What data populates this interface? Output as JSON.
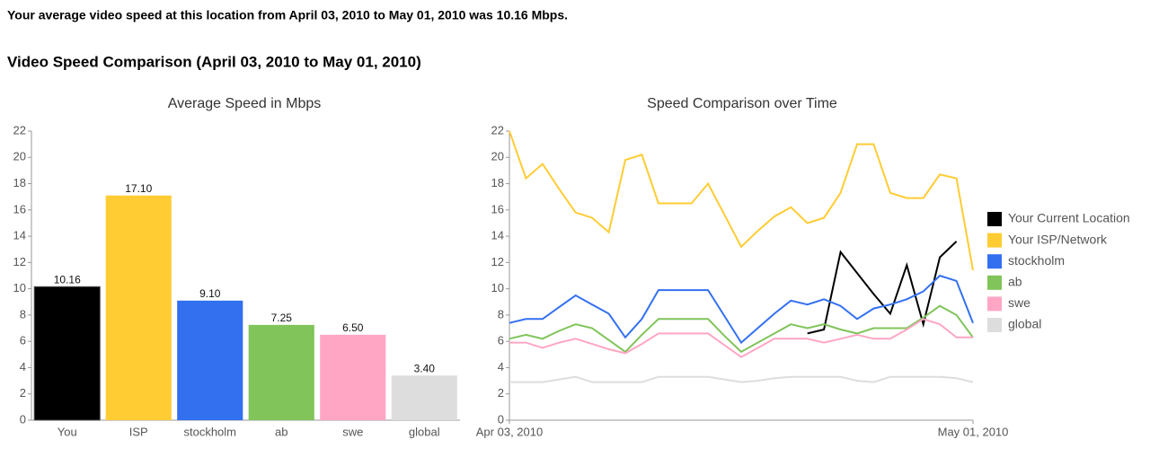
{
  "summary": "Your average video speed at this location from April 03, 2010 to May 01, 2010 was 10.16 Mbps.",
  "heading": "Video Speed Comparison (April 03, 2010 to May 01, 2010)",
  "chart_data": [
    {
      "type": "bar",
      "title": "Average Speed in Mbps",
      "categories": [
        "You",
        "ISP",
        "stockholm",
        "ab",
        "swe",
        "global"
      ],
      "values": [
        10.16,
        17.1,
        9.1,
        7.25,
        6.5,
        3.4
      ],
      "value_labels": [
        "10.16",
        "17.10",
        "9.10",
        "7.25",
        "6.50",
        "3.40"
      ],
      "colors": [
        "#000000",
        "#ffcc33",
        "#3370f0",
        "#80c45a",
        "#ffa6c4",
        "#dddddd"
      ],
      "ylim": [
        0,
        22
      ],
      "yticks": [
        0,
        2,
        4,
        6,
        8,
        10,
        12,
        14,
        16,
        18,
        20,
        22
      ]
    },
    {
      "type": "line",
      "title": "Speed Comparison over Time",
      "x": [
        "2010-04-03",
        "2010-04-04",
        "2010-04-05",
        "2010-04-06",
        "2010-04-07",
        "2010-04-08",
        "2010-04-09",
        "2010-04-10",
        "2010-04-11",
        "2010-04-12",
        "2010-04-13",
        "2010-04-14",
        "2010-04-15",
        "2010-04-16",
        "2010-04-17",
        "2010-04-18",
        "2010-04-19",
        "2010-04-20",
        "2010-04-21",
        "2010-04-22",
        "2010-04-23",
        "2010-04-24",
        "2010-04-25",
        "2010-04-26",
        "2010-04-27",
        "2010-04-28",
        "2010-04-29",
        "2010-04-30",
        "2010-05-01"
      ],
      "xlim": [
        "2010-04-03",
        "2010-05-01"
      ],
      "xticks": [
        {
          "value": "2010-04-03",
          "label": "Apr 03, 2010"
        },
        {
          "value": "2010-05-01",
          "label": "May 01, 2010"
        }
      ],
      "ylim": [
        0,
        22
      ],
      "yticks": [
        0,
        2,
        4,
        6,
        8,
        10,
        12,
        14,
        16,
        18,
        20,
        22
      ],
      "legend": "right",
      "series": [
        {
          "name": "Your Current Location",
          "color": "#000000",
          "values": [
            null,
            null,
            null,
            null,
            null,
            null,
            null,
            null,
            null,
            null,
            null,
            null,
            null,
            null,
            null,
            null,
            null,
            null,
            6.6,
            6.9,
            12.8,
            11.2,
            9.6,
            8.1,
            11.8,
            7.3,
            12.4,
            13.6,
            null
          ]
        },
        {
          "name": "Your ISP/Network",
          "color": "#ffcc33",
          "values": [
            22.0,
            18.4,
            19.5,
            17.6,
            15.8,
            15.4,
            14.3,
            19.8,
            20.2,
            16.5,
            16.5,
            16.5,
            18.0,
            15.6,
            13.2,
            14.4,
            15.5,
            16.2,
            15.0,
            15.4,
            17.3,
            21.0,
            21.0,
            17.3,
            16.9,
            16.9,
            18.7,
            18.4,
            11.4
          ]
        },
        {
          "name": "stockholm",
          "color": "#3370f0",
          "values": [
            7.4,
            7.7,
            7.7,
            8.6,
            9.5,
            8.8,
            8.1,
            6.3,
            7.7,
            9.9,
            9.9,
            9.9,
            9.9,
            7.9,
            5.9,
            7.0,
            8.1,
            9.1,
            8.8,
            9.2,
            8.7,
            7.7,
            8.5,
            8.8,
            9.2,
            9.8,
            11.0,
            10.6,
            7.4
          ]
        },
        {
          "name": "ab",
          "color": "#80c45a",
          "values": [
            6.2,
            6.5,
            6.2,
            6.8,
            7.3,
            7.0,
            6.1,
            5.2,
            6.5,
            7.7,
            7.7,
            7.7,
            7.7,
            6.4,
            5.2,
            5.9,
            6.6,
            7.3,
            7.0,
            7.3,
            6.9,
            6.6,
            7.0,
            7.0,
            7.0,
            7.8,
            8.7,
            8.0,
            6.3
          ]
        },
        {
          "name": "swe",
          "color": "#ffa6c4",
          "values": [
            5.9,
            5.9,
            5.5,
            5.9,
            6.2,
            5.8,
            5.4,
            5.1,
            5.8,
            6.6,
            6.6,
            6.6,
            6.6,
            5.7,
            4.8,
            5.5,
            6.2,
            6.2,
            6.2,
            5.9,
            6.2,
            6.5,
            6.2,
            6.2,
            6.9,
            7.7,
            7.3,
            6.3,
            6.3
          ]
        },
        {
          "name": "global",
          "color": "#dddddd",
          "values": [
            2.9,
            2.9,
            2.9,
            3.1,
            3.3,
            2.9,
            2.9,
            2.9,
            2.9,
            3.3,
            3.3,
            3.3,
            3.3,
            3.1,
            2.9,
            3.0,
            3.2,
            3.3,
            3.3,
            3.3,
            3.3,
            3.0,
            2.9,
            3.3,
            3.3,
            3.3,
            3.3,
            3.2,
            2.9
          ]
        }
      ]
    }
  ]
}
